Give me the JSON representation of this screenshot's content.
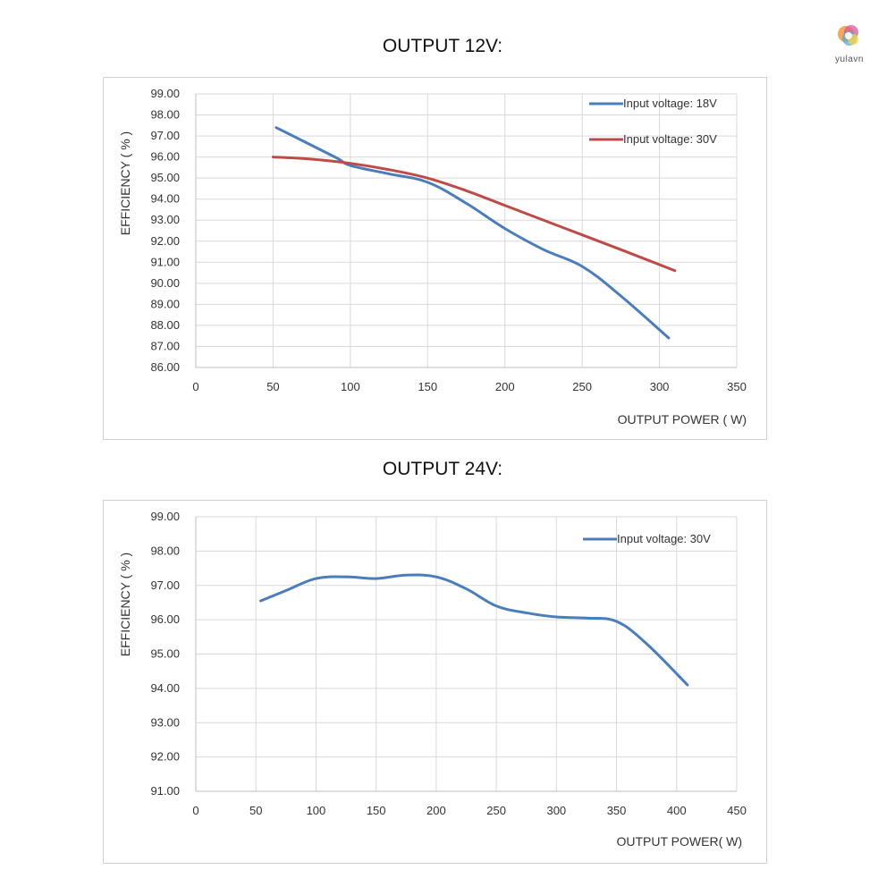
{
  "logo": {
    "text": "yulavn"
  },
  "chart_data": [
    {
      "type": "line",
      "title": "OUTPUT 12V:",
      "xlabel": "OUTPUT POWER ( W)",
      "ylabel": "EFFICIENCY ( % )",
      "xlim": [
        0,
        350
      ],
      "ylim": [
        86,
        99
      ],
      "xticks": [
        0,
        50,
        100,
        150,
        200,
        250,
        300,
        350
      ],
      "yticks": [
        86,
        87,
        88,
        89,
        90,
        91,
        92,
        93,
        94,
        95,
        96,
        97,
        98,
        99
      ],
      "ytick_labels": [
        "86.00",
        "87.00",
        "88.00",
        "89.00",
        "90.00",
        "91.00",
        "92.00",
        "93.00",
        "94.00",
        "95.00",
        "96.00",
        "97.00",
        "98.00",
        "99.00"
      ],
      "grid": true,
      "legend": "top-right",
      "series": [
        {
          "name": "Input voltage: 18V",
          "color": "#4a7ebb",
          "x": [
            52,
            90,
            100,
            125,
            150,
            175,
            200,
            225,
            250,
            275,
            306
          ],
          "y": [
            97.4,
            96.0,
            95.6,
            95.2,
            94.8,
            93.8,
            92.6,
            91.6,
            90.8,
            89.4,
            87.4
          ]
        },
        {
          "name": "Input voltage: 30V",
          "color": "#be4b48",
          "x": [
            50,
            75,
            100,
            125,
            150,
            175,
            200,
            225,
            250,
            275,
            310
          ],
          "y": [
            96.0,
            95.9,
            95.7,
            95.4,
            95.0,
            94.4,
            93.7,
            93.0,
            92.3,
            91.6,
            90.6
          ]
        }
      ]
    },
    {
      "type": "line",
      "title": "OUTPUT 24V:",
      "xlabel": "OUTPUT POWER( W)",
      "ylabel": "EFFICIENCY ( % )",
      "xlim": [
        0,
        450
      ],
      "ylim": [
        91,
        99
      ],
      "xticks": [
        0,
        50,
        100,
        150,
        200,
        250,
        300,
        350,
        400,
        450
      ],
      "yticks": [
        91,
        92,
        93,
        94,
        95,
        96,
        97,
        98,
        99
      ],
      "ytick_labels": [
        "91.00",
        "92.00",
        "93.00",
        "94.00",
        "95.00",
        "96.00",
        "97.00",
        "98.00",
        "99.00"
      ],
      "grid": true,
      "legend": "top-right",
      "series": [
        {
          "name": "Input voltage: 30V",
          "color": "#4a7ebb",
          "x": [
            54,
            75,
            100,
            125,
            150,
            175,
            200,
            225,
            250,
            275,
            300,
            325,
            350,
            375,
            409
          ],
          "y": [
            96.55,
            96.85,
            97.2,
            97.25,
            97.2,
            97.3,
            97.25,
            96.9,
            96.4,
            96.2,
            96.08,
            96.05,
            95.95,
            95.3,
            94.1
          ]
        }
      ]
    }
  ]
}
